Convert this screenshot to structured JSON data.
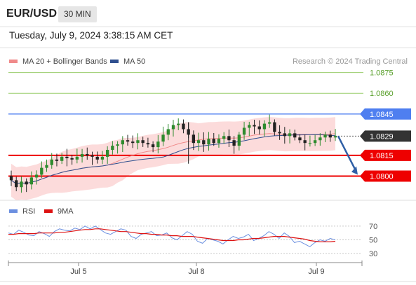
{
  "header": {
    "symbol": "EUR/USD",
    "timeframe": "30 MIN",
    "datetime": "Tuesday, July 9, 2024 3:38:15 AM CET"
  },
  "legend_main": [
    {
      "label": "MA 20 + Bollinger Bands",
      "color": "#f08a8a"
    },
    {
      "label": "MA 50",
      "color": "#2f4f8f"
    }
  ],
  "legend_rsi": [
    {
      "label": "RSI",
      "color": "#6b8fe0"
    },
    {
      "label": "9MA",
      "color": "#dd1111"
    }
  ],
  "copyright": "Research © 2024 Trading Central",
  "colors": {
    "resistance_line": "#4f7ff0",
    "support_line": "#ee0000",
    "target_line": "#9acd6b",
    "target_text": "#5aa02c",
    "candle_up": "#2e8b2e",
    "candle_down": "#222222",
    "bb_fill": "#fbd5d5",
    "forecast_arrow": "#2f5fa6",
    "last_price_label": "#333333"
  },
  "chart_data": [
    {
      "type": "candlestick",
      "title": "EUR/USD 30 MIN",
      "x_tick_labels": [
        "Jul 5",
        "Jul 8",
        "Jul 9"
      ],
      "ylim": [
        1.0784,
        1.0886
      ],
      "grid": false,
      "legend_position": "top-left",
      "levels": [
        {
          "label": "1.0875",
          "value": 1.0875,
          "kind": "target"
        },
        {
          "label": "1.0860",
          "value": 1.086,
          "kind": "target"
        },
        {
          "label": "1.0845",
          "value": 1.0845,
          "kind": "resistance"
        },
        {
          "label": "1.0829",
          "value": 1.0829,
          "kind": "last_price"
        },
        {
          "label": "1.0815",
          "value": 1.0815,
          "kind": "pivot"
        },
        {
          "label": "1.0800",
          "value": 1.08,
          "kind": "support"
        }
      ],
      "close_series": [
        1.0797,
        1.0792,
        1.0796,
        1.0794,
        1.0799,
        1.0801,
        1.0806,
        1.0808,
        1.0812,
        1.0811,
        1.0814,
        1.0813,
        1.0812,
        1.0814,
        1.0816,
        1.0815,
        1.0814,
        1.0812,
        1.0814,
        1.0819,
        1.0822,
        1.0823,
        1.0826,
        1.0825,
        1.0824,
        1.0826,
        1.0824,
        1.0823,
        1.0821,
        1.0825,
        1.083,
        1.0834,
        1.0837,
        1.0838,
        1.0834,
        1.083,
        1.0824,
        1.0826,
        1.0823,
        1.0827,
        1.0824,
        1.0827,
        1.0829,
        1.0826,
        1.0822,
        1.083,
        1.0835,
        1.0837,
        1.0836,
        1.0834,
        1.0838,
        1.0839,
        1.0832,
        1.0831,
        1.0829,
        1.0831,
        1.0828,
        1.0826,
        1.0824,
        1.0824,
        1.0826,
        1.0828,
        1.083,
        1.0828,
        1.0829
      ],
      "forecast": {
        "from": 1.0829,
        "to": 1.08,
        "direction": "down"
      }
    },
    {
      "type": "line",
      "title": "RSI",
      "y_tick_labels": [
        "70",
        "50",
        "30"
      ],
      "ylim": [
        20,
        80
      ],
      "reference_lines": [
        70,
        50,
        30
      ],
      "series": [
        {
          "name": "RSI",
          "values": [
            60,
            58,
            64,
            61,
            57,
            56,
            62,
            59,
            55,
            62,
            66,
            64,
            63,
            67,
            65,
            70,
            66,
            70,
            65,
            60,
            58,
            62,
            66,
            64,
            55,
            52,
            58,
            60,
            62,
            56,
            57,
            60,
            53,
            50,
            56,
            62,
            58,
            48,
            45,
            52,
            50,
            48,
            44,
            50,
            55,
            52,
            54,
            58,
            49,
            52,
            56,
            62,
            58,
            52,
            60,
            55,
            46,
            48,
            44,
            40,
            46,
            50,
            48,
            52,
            50
          ]
        },
        {
          "name": "9MA",
          "values": [
            58,
            58,
            59,
            59,
            59,
            59,
            60,
            60,
            60,
            60,
            61,
            61,
            62,
            63,
            64,
            65,
            65,
            66,
            66,
            65,
            64,
            63,
            62,
            62,
            61,
            60,
            59,
            59,
            58,
            58,
            57,
            57,
            56,
            56,
            55,
            55,
            55,
            54,
            53,
            52,
            51,
            50,
            49,
            49,
            49,
            50,
            50,
            51,
            52,
            52,
            53,
            54,
            55,
            55,
            55,
            54,
            53,
            52,
            51,
            49,
            48,
            47,
            47,
            47,
            48
          ]
        }
      ]
    }
  ]
}
